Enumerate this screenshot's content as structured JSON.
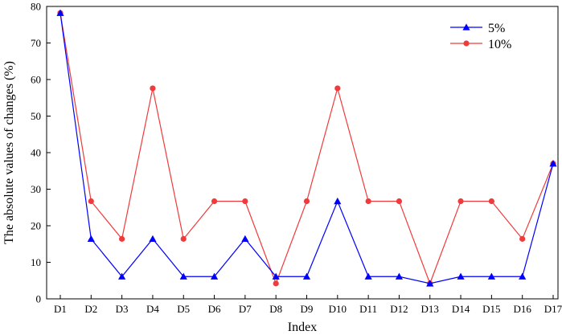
{
  "chart_data": {
    "type": "line",
    "title": "",
    "xlabel": "Index",
    "ylabel": "The absolute values of changes (%)",
    "categories": [
      "D1",
      "D2",
      "D3",
      "D4",
      "D5",
      "D6",
      "D7",
      "D8",
      "D9",
      "D10",
      "D11",
      "D12",
      "D13",
      "D14",
      "D15",
      "D16",
      "D17"
    ],
    "ylim": [
      0,
      80
    ],
    "yticks": [
      0,
      10,
      20,
      30,
      40,
      50,
      60,
      70,
      80
    ],
    "grid": false,
    "legend_position": "top-right",
    "series": [
      {
        "name": "5%",
        "color": "#0000ff",
        "marker": "triangle",
        "values": [
          78.2,
          16.4,
          6.1,
          16.4,
          6.1,
          6.1,
          16.4,
          6.1,
          6.1,
          26.7,
          6.1,
          6.1,
          4.2,
          6.1,
          6.1,
          6.1,
          37.0
        ]
      },
      {
        "name": "10%",
        "color": "#ef3b3b",
        "marker": "circle",
        "values": [
          78.2,
          26.7,
          16.4,
          57.6,
          16.4,
          26.7,
          26.7,
          4.2,
          26.7,
          57.6,
          26.7,
          26.7,
          4.2,
          26.7,
          26.7,
          16.4,
          37.0
        ]
      }
    ]
  }
}
